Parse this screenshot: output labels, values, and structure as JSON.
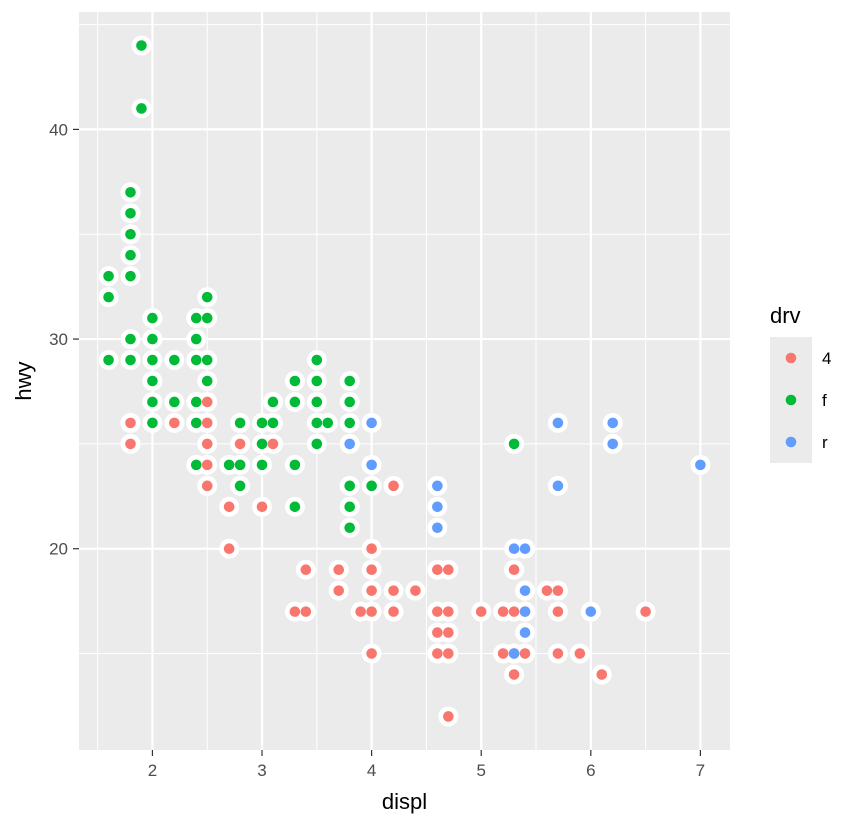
{
  "chart_data": {
    "type": "scatter",
    "title": "",
    "xlabel": "displ",
    "ylabel": "hwy",
    "xlim": [
      1.33,
      7.27
    ],
    "ylim": [
      10.4,
      45.6
    ],
    "x_ticks": [
      2,
      3,
      4,
      5,
      6,
      7
    ],
    "x_tick_labels": [
      "2",
      "3",
      "4",
      "5",
      "6",
      "7"
    ],
    "y_ticks": [
      20,
      30,
      40
    ],
    "y_tick_labels": [
      "20",
      "30",
      "40"
    ],
    "x_minor_ticks": [
      1.5,
      2.5,
      3.5,
      4.5,
      5.5,
      6.5
    ],
    "y_minor_ticks": [
      15,
      25,
      35,
      45
    ],
    "grid": true,
    "panel_background": "#EBEBEB",
    "grid_color": "#FFFFFF",
    "outer_marker": {
      "shape": "circle",
      "color": "#FFFFFF"
    },
    "legend": {
      "title": "drv",
      "position": "right"
    },
    "series": [
      {
        "name": "4",
        "color": "#F8766D",
        "points": [
          [
            1.8,
            26
          ],
          [
            1.8,
            25
          ],
          [
            2.2,
            26
          ],
          [
            2.5,
            27
          ],
          [
            2.5,
            26
          ],
          [
            2.5,
            25
          ],
          [
            2.5,
            24
          ],
          [
            2.5,
            23
          ],
          [
            2.7,
            22
          ],
          [
            2.7,
            20
          ],
          [
            2.8,
            25
          ],
          [
            2.8,
            24
          ],
          [
            3.0,
            22
          ],
          [
            3.1,
            25
          ],
          [
            3.3,
            17
          ],
          [
            3.4,
            19
          ],
          [
            3.4,
            17
          ],
          [
            3.7,
            19
          ],
          [
            3.7,
            18
          ],
          [
            3.9,
            17
          ],
          [
            4.0,
            20
          ],
          [
            4.0,
            19
          ],
          [
            4.0,
            18
          ],
          [
            4.0,
            17
          ],
          [
            4.0,
            15
          ],
          [
            4.2,
            23
          ],
          [
            4.2,
            18
          ],
          [
            4.2,
            17
          ],
          [
            4.4,
            18
          ],
          [
            4.6,
            19
          ],
          [
            4.6,
            17
          ],
          [
            4.6,
            16
          ],
          [
            4.6,
            15
          ],
          [
            4.7,
            19
          ],
          [
            4.7,
            17
          ],
          [
            4.7,
            16
          ],
          [
            4.7,
            15
          ],
          [
            4.7,
            12
          ],
          [
            5.0,
            17
          ],
          [
            5.2,
            17
          ],
          [
            5.2,
            15
          ],
          [
            5.3,
            19
          ],
          [
            5.3,
            17
          ],
          [
            5.3,
            15
          ],
          [
            5.3,
            14
          ],
          [
            5.4,
            17
          ],
          [
            5.4,
            15
          ],
          [
            5.6,
            18
          ],
          [
            5.7,
            18
          ],
          [
            5.7,
            17
          ],
          [
            5.7,
            15
          ],
          [
            5.9,
            15
          ],
          [
            6.1,
            14
          ],
          [
            6.5,
            17
          ]
        ]
      },
      {
        "name": "f",
        "color": "#00BA38",
        "points": [
          [
            1.6,
            33
          ],
          [
            1.6,
            32
          ],
          [
            1.6,
            29
          ],
          [
            1.8,
            37
          ],
          [
            1.8,
            36
          ],
          [
            1.8,
            35
          ],
          [
            1.8,
            34
          ],
          [
            1.8,
            33
          ],
          [
            1.8,
            30
          ],
          [
            1.8,
            29
          ],
          [
            1.9,
            44
          ],
          [
            1.9,
            41
          ],
          [
            2.0,
            31
          ],
          [
            2.0,
            30
          ],
          [
            2.0,
            29
          ],
          [
            2.0,
            28
          ],
          [
            2.0,
            27
          ],
          [
            2.0,
            26
          ],
          [
            2.2,
            29
          ],
          [
            2.2,
            27
          ],
          [
            2.4,
            31
          ],
          [
            2.4,
            30
          ],
          [
            2.4,
            29
          ],
          [
            2.4,
            27
          ],
          [
            2.4,
            26
          ],
          [
            2.4,
            24
          ],
          [
            2.5,
            32
          ],
          [
            2.5,
            31
          ],
          [
            2.5,
            29
          ],
          [
            2.5,
            28
          ],
          [
            2.7,
            24
          ],
          [
            2.8,
            26
          ],
          [
            2.8,
            24
          ],
          [
            2.8,
            23
          ],
          [
            3.0,
            26
          ],
          [
            3.0,
            25
          ],
          [
            3.0,
            24
          ],
          [
            3.1,
            27
          ],
          [
            3.1,
            26
          ],
          [
            3.3,
            28
          ],
          [
            3.3,
            27
          ],
          [
            3.3,
            24
          ],
          [
            3.3,
            22
          ],
          [
            3.5,
            29
          ],
          [
            3.5,
            28
          ],
          [
            3.5,
            27
          ],
          [
            3.5,
            26
          ],
          [
            3.5,
            25
          ],
          [
            3.6,
            26
          ],
          [
            3.8,
            28
          ],
          [
            3.8,
            27
          ],
          [
            3.8,
            26
          ],
          [
            3.8,
            23
          ],
          [
            3.8,
            22
          ],
          [
            3.8,
            21
          ],
          [
            4.0,
            23
          ],
          [
            5.3,
            25
          ]
        ]
      },
      {
        "name": "r",
        "color": "#619CFF",
        "points": [
          [
            3.8,
            25
          ],
          [
            4.0,
            26
          ],
          [
            4.0,
            24
          ],
          [
            4.6,
            23
          ],
          [
            4.6,
            22
          ],
          [
            4.6,
            21
          ],
          [
            5.3,
            20
          ],
          [
            5.3,
            15
          ],
          [
            5.4,
            20
          ],
          [
            5.4,
            18
          ],
          [
            5.4,
            17
          ],
          [
            5.4,
            16
          ],
          [
            5.7,
            26
          ],
          [
            5.7,
            23
          ],
          [
            6.0,
            17
          ],
          [
            6.2,
            26
          ],
          [
            6.2,
            25
          ],
          [
            7.0,
            24
          ]
        ]
      }
    ]
  }
}
